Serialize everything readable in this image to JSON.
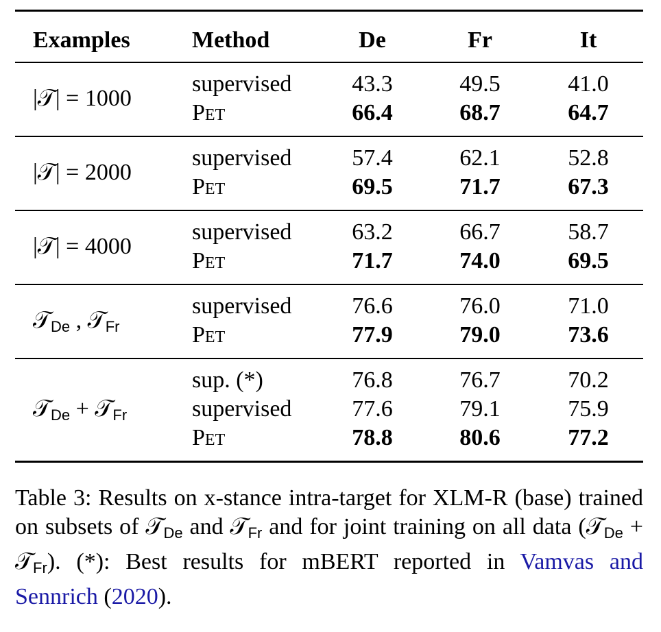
{
  "table": {
    "headers": [
      "Examples",
      "Method",
      "De",
      "Fr",
      "It"
    ],
    "groups": [
      {
        "example": "|𝒯| = 1000",
        "rows": [
          {
            "method": "supervised",
            "pet": false,
            "values": [
              "43.3",
              "49.5",
              "41.0"
            ]
          },
          {
            "method": "Pet",
            "pet": true,
            "values": [
              "66.4",
              "68.7",
              "64.7"
            ]
          }
        ]
      },
      {
        "example": "|𝒯| = 2000",
        "rows": [
          {
            "method": "supervised",
            "pet": false,
            "values": [
              "57.4",
              "62.1",
              "52.8"
            ]
          },
          {
            "method": "Pet",
            "pet": true,
            "values": [
              "69.5",
              "71.7",
              "67.3"
            ]
          }
        ]
      },
      {
        "example": "|𝒯| = 4000",
        "rows": [
          {
            "method": "supervised",
            "pet": false,
            "values": [
              "63.2",
              "66.7",
              "58.7"
            ]
          },
          {
            "method": "Pet",
            "pet": true,
            "values": [
              "71.7",
              "74.0",
              "69.5"
            ]
          }
        ]
      },
      {
        "example": "𝒯",
        "example_sub": "De",
        "example_mid": " , 𝒯",
        "example_sub2": "Fr",
        "rows": [
          {
            "method": "supervised",
            "pet": false,
            "values": [
              "76.6",
              "76.0",
              "71.0"
            ]
          },
          {
            "method": "Pet",
            "pet": true,
            "values": [
              "77.9",
              "79.0",
              "73.6"
            ]
          }
        ]
      },
      {
        "example": "𝒯",
        "example_sub": "De",
        "example_mid": " + 𝒯",
        "example_sub2": "Fr",
        "rows": [
          {
            "method": "sup. (*)",
            "pet": false,
            "values": [
              "76.8",
              "76.7",
              "70.2"
            ]
          },
          {
            "method": "supervised",
            "pet": false,
            "values": [
              "77.6",
              "79.1",
              "75.9"
            ]
          },
          {
            "method": "Pet",
            "pet": true,
            "values": [
              "78.8",
              "80.6",
              "77.2"
            ]
          }
        ]
      }
    ]
  },
  "caption": {
    "p1": "Table 3:  Results on x-stance intra-target for XLM-R (base) trained on subsets of ",
    "t1": "𝒯",
    "s1": "De",
    "p2": " and ",
    "t2": "𝒯",
    "s2": "Fr",
    "p3": " and for joint training on all data (",
    "t3": "𝒯",
    "s3": "De",
    "p4": " + ",
    "t4": "𝒯",
    "s4": "Fr",
    "p5": ").  (*): Best results for mBERT reported in ",
    "cite_authors": "Vamvas and Sennrich",
    "p6": " (",
    "cite_year": "2020",
    "p7": ")."
  }
}
